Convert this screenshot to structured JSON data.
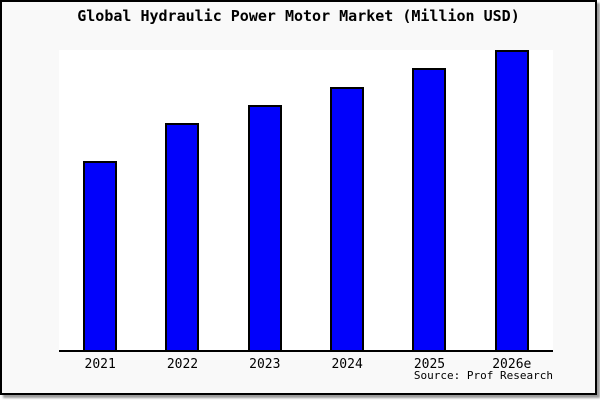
{
  "title": "Global Hydraulic Power Motor Market (Million USD)",
  "source": "Source: Prof Research",
  "colors": {
    "bar_fill": "#0101fb",
    "bar_border": "#000000",
    "frame_border": "#000000",
    "canvas_background": "#f9f9f9",
    "plot_background": "#ffffff",
    "text": "#000000"
  },
  "chart_data": {
    "type": "bar",
    "title": "Global Hydraulic Power Motor Market (Million USD)",
    "categories": [
      "2021",
      "2022",
      "2023",
      "2024",
      "2025",
      "2026e"
    ],
    "values": [
      62.5,
      75,
      81,
      87,
      93.5,
      99.5
    ],
    "xlabel": "",
    "ylabel": "",
    "ylim": [
      0,
      100
    ],
    "grid": false,
    "legend": false,
    "note": "No y-axis tick labels or gridlines shown; values are relative bar heights as percent of plot height"
  }
}
